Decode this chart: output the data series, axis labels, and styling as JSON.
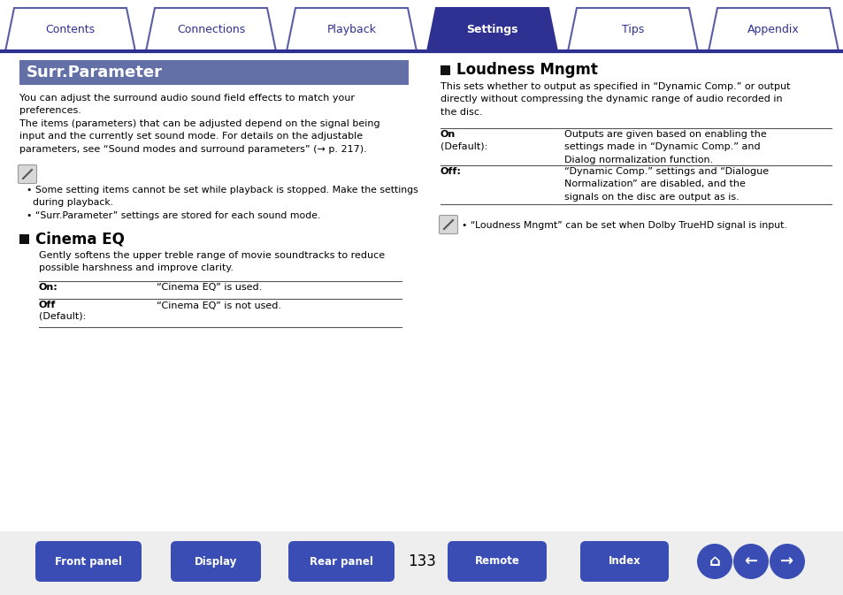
{
  "bg_color": "#ffffff",
  "tab_names": [
    "Contents",
    "Connections",
    "Playback",
    "Settings",
    "Tips",
    "Appendix"
  ],
  "tab_active": 3,
  "tab_active_color": "#2e3192",
  "tab_inactive_color": "#ffffff",
  "tab_border_color": "#5b5ea6",
  "tab_text_color_active": "#ffffff",
  "tab_text_color_inactive": "#2e3192",
  "tab_line_color": "#2e3192",
  "surr_header_bg": "#6370a8",
  "surr_header_text": "Surr.Parameter",
  "surr_header_text_color": "#ffffff",
  "note_bullet1": "Some setting items cannot be set while playback is stopped. Make the settings\n  during playback.",
  "note_bullet2": "“Surr.Parameter” settings are stored for each sound mode.",
  "cinema_eq_title": "Cinema EQ",
  "cinema_eq_body": "Gently softens the upper treble range of movie soundtracks to reduce\npossible harshness and improve clarity.",
  "cinema_on_label": "On:",
  "cinema_on_value": "“Cinema EQ” is used.",
  "cinema_off_value": "“Cinema EQ” is not used.",
  "loudness_title": "Loudness Mngmt",
  "loudness_body": "This sets whether to output as specified in “Dynamic Comp.” or output\ndirectly without compressing the dynamic range of audio recorded in\nthe disc.",
  "loudness_on_value": "Outputs are given based on enabling the\nsettings made in “Dynamic Comp.” and\nDialog normalization function.",
  "loudness_off_value": "“Dynamic Comp.” settings and “Dialogue\nNormalization” are disabled, and the\nsignals on the disc are output as is.",
  "loudness_note": "“Loudness Mngmt” can be set when Dolby TrueHD signal is input.",
  "page_num": "133",
  "bottom_buttons": [
    "Front panel",
    "Display",
    "Rear panel",
    "Remote",
    "Index"
  ],
  "bottom_btn_color": "#3a4db5",
  "bottom_btn_text_color": "#ffffff",
  "text_color": "#000000",
  "line_color": "#999999"
}
